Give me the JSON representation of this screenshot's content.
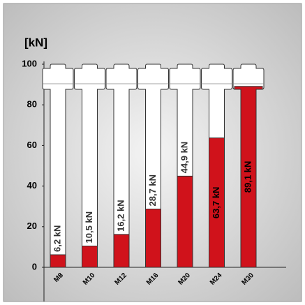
{
  "chart_data": {
    "type": "bar",
    "ylabel": "[kN]",
    "categories": [
      "M8",
      "M10",
      "M12",
      "M16",
      "M20",
      "M24",
      "M30"
    ],
    "values": [
      6.2,
      10.5,
      16.2,
      28.7,
      44.9,
      63.7,
      89.1
    ],
    "value_labels": [
      "6,2 kN",
      "10,5 kN",
      "16,2 kN",
      "28,7 kN",
      "44,9 kN",
      "63,7 kN",
      "89,1 kN"
    ],
    "color": "#d0121b",
    "ylim": [
      0,
      100
    ],
    "yticks": [
      0,
      20,
      40,
      60,
      80,
      100
    ],
    "grid": false
  }
}
